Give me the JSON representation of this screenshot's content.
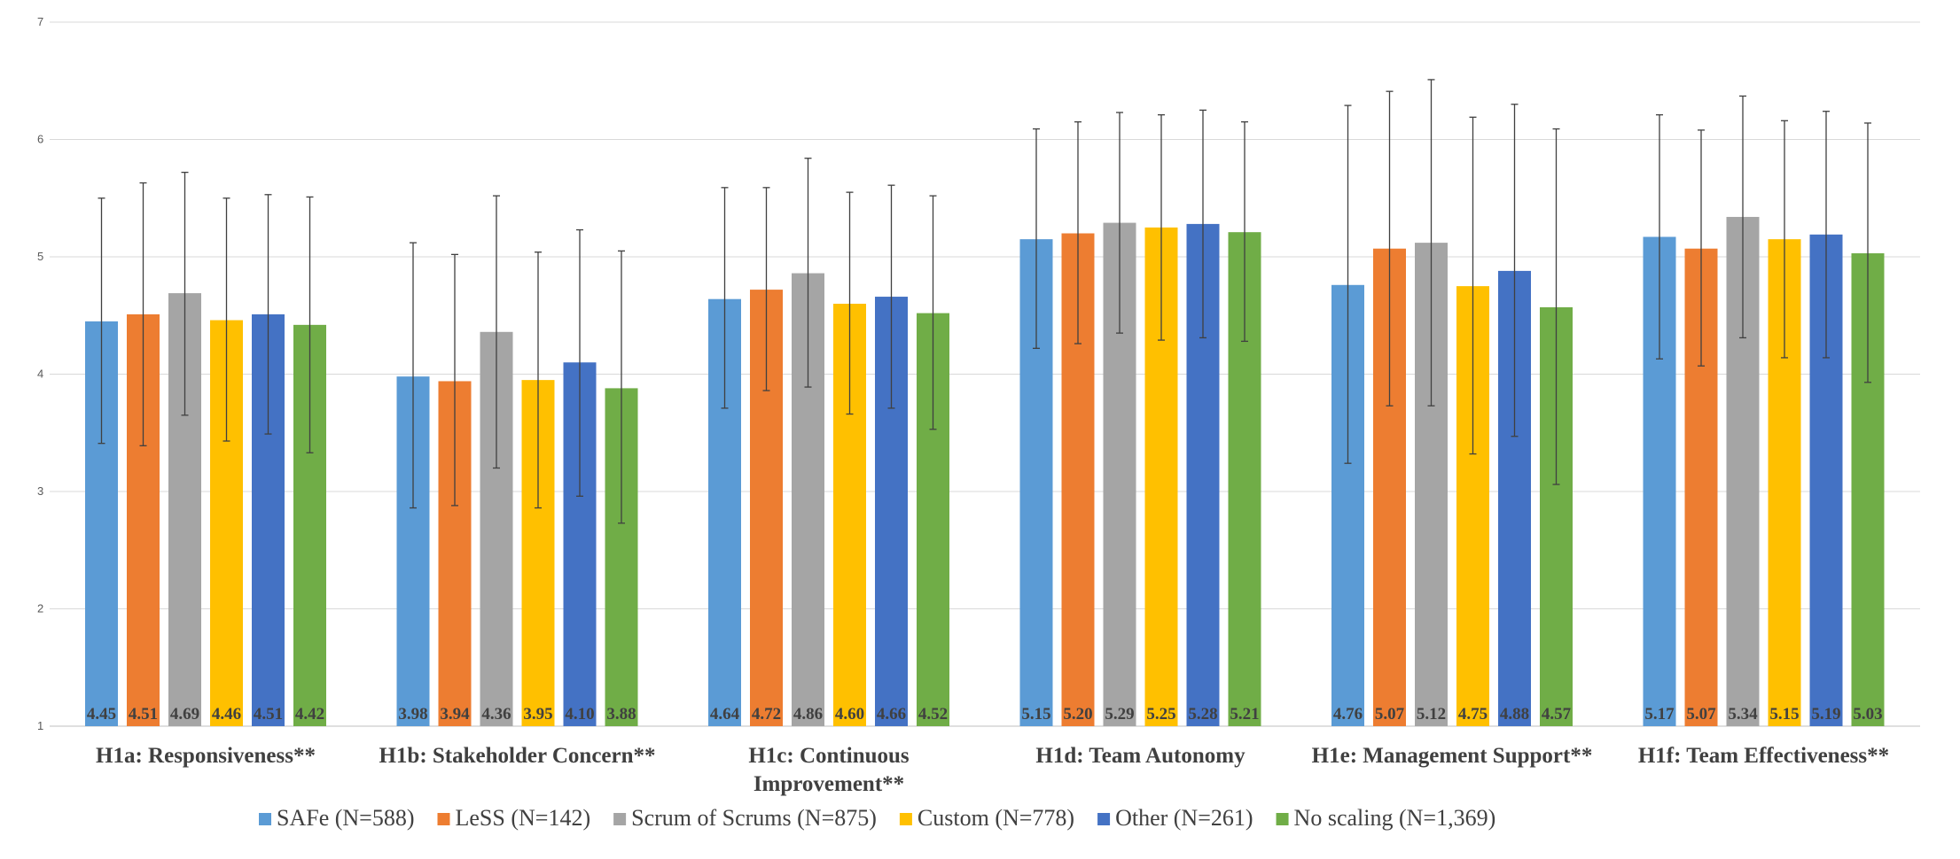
{
  "chart_data": {
    "type": "bar",
    "title": "",
    "xlabel": "",
    "ylabel": "",
    "ylim": [
      1,
      7
    ],
    "yticks": [
      1,
      2,
      3,
      4,
      5,
      6,
      7
    ],
    "grid": true,
    "legend_position": "bottom",
    "categories": [
      [
        "H1a: Responsiveness**"
      ],
      [
        "H1b: Stakeholder Concern**"
      ],
      [
        "H1c: Continuous",
        "Improvement**"
      ],
      [
        "H1d: Team Autonomy"
      ],
      [
        "H1e: Management Support**"
      ],
      [
        "H1f: Team Effectiveness**"
      ]
    ],
    "series": [
      {
        "name": "SAFe (N=588)",
        "color": "#5B9BD5",
        "values": [
          4.45,
          3.98,
          4.64,
          5.15,
          4.76,
          5.17
        ],
        "labels": [
          "4.45",
          "3.98",
          "4.64",
          "5.15",
          "4.76",
          "5.17"
        ],
        "err_low": [
          3.41,
          2.86,
          3.71,
          4.22,
          3.24,
          4.13
        ],
        "err_high": [
          5.5,
          5.12,
          5.59,
          6.09,
          6.29,
          6.21
        ]
      },
      {
        "name": "LeSS (N=142)",
        "color": "#ED7D31",
        "values": [
          4.51,
          3.94,
          4.72,
          5.2,
          5.07,
          5.07
        ],
        "labels": [
          "4.51",
          "3.94",
          "4.72",
          "5.20",
          "5.07",
          "5.07"
        ],
        "err_low": [
          3.39,
          2.88,
          3.86,
          4.26,
          3.73,
          4.07
        ],
        "err_high": [
          5.63,
          5.02,
          5.59,
          6.15,
          6.41,
          6.08
        ]
      },
      {
        "name": "Scrum of Scrums (N=875)",
        "color": "#A5A5A5",
        "values": [
          4.69,
          4.36,
          4.86,
          5.29,
          5.12,
          5.34
        ],
        "labels": [
          "4.69",
          "4.36",
          "4.86",
          "5.29",
          "5.12",
          "5.34"
        ],
        "err_low": [
          3.65,
          3.2,
          3.89,
          4.35,
          3.73,
          4.31
        ],
        "err_high": [
          5.72,
          5.52,
          5.84,
          6.23,
          6.51,
          6.37
        ]
      },
      {
        "name": "Custom (N=778)",
        "color": "#FFC000",
        "values": [
          4.46,
          3.95,
          4.6,
          5.25,
          4.75,
          5.15
        ],
        "labels": [
          "4.46",
          "3.95",
          "4.60",
          "5.25",
          "4.75",
          "5.15"
        ],
        "err_low": [
          3.43,
          2.86,
          3.66,
          4.29,
          3.32,
          4.14
        ],
        "err_high": [
          5.5,
          5.04,
          5.55,
          6.21,
          6.19,
          6.16
        ]
      },
      {
        "name": "Other (N=261)",
        "color": "#4472C4",
        "values": [
          4.51,
          4.1,
          4.66,
          5.28,
          4.88,
          5.19
        ],
        "labels": [
          "4.51",
          "4.10",
          "4.66",
          "5.28",
          "4.88",
          "5.19"
        ],
        "err_low": [
          3.49,
          2.96,
          3.71,
          4.31,
          3.47,
          4.14
        ],
        "err_high": [
          5.53,
          5.23,
          5.61,
          6.25,
          6.3,
          6.24
        ]
      },
      {
        "name": "No scaling (N=1,369)",
        "color": "#70AD47",
        "values": [
          4.42,
          3.88,
          4.52,
          5.21,
          4.57,
          5.03
        ],
        "labels": [
          "4.42",
          "3.88",
          "4.52",
          "5.21",
          "4.57",
          "5.03"
        ],
        "err_low": [
          3.33,
          2.73,
          3.53,
          4.28,
          3.06,
          3.93
        ],
        "err_high": [
          5.51,
          5.05,
          5.52,
          6.15,
          6.09,
          6.14
        ]
      }
    ]
  }
}
